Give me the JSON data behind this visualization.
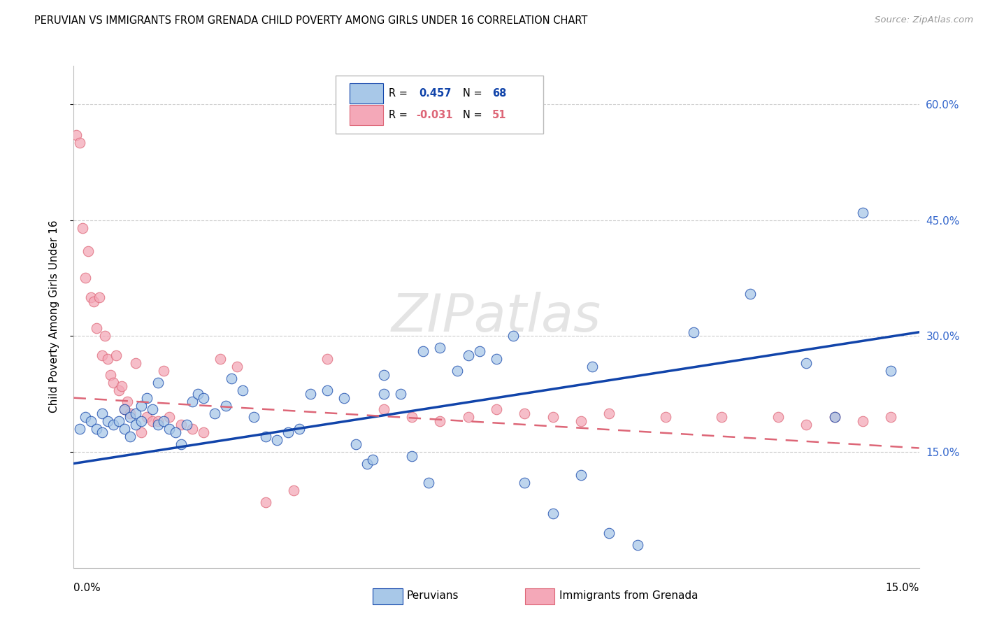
{
  "title": "PERUVIAN VS IMMIGRANTS FROM GRENADA CHILD POVERTY AMONG GIRLS UNDER 16 CORRELATION CHART",
  "source": "Source: ZipAtlas.com",
  "ylabel": "Child Poverty Among Girls Under 16",
  "xlim": [
    0.0,
    15.0
  ],
  "ylim": [
    0.0,
    65.0
  ],
  "yticks": [
    15.0,
    30.0,
    45.0,
    60.0
  ],
  "ytick_labels": [
    "15.0%",
    "30.0%",
    "45.0%",
    "60.0%"
  ],
  "legend1_label": "Peruvians",
  "legend2_label": "Immigrants from Grenada",
  "r1": 0.457,
  "n1": 68,
  "r2": -0.031,
  "n2": 51,
  "blue_color": "#A8C8E8",
  "pink_color": "#F4A8B8",
  "blue_line_color": "#1144AA",
  "pink_line_color": "#DD6677",
  "watermark": "ZIPatlas",
  "blue_x": [
    0.1,
    0.2,
    0.3,
    0.4,
    0.5,
    0.5,
    0.6,
    0.7,
    0.8,
    0.9,
    0.9,
    1.0,
    1.0,
    1.1,
    1.1,
    1.2,
    1.2,
    1.3,
    1.4,
    1.5,
    1.5,
    1.6,
    1.7,
    1.8,
    1.9,
    2.0,
    2.1,
    2.2,
    2.3,
    2.5,
    2.7,
    2.8,
    3.0,
    3.2,
    3.4,
    3.6,
    3.8,
    4.0,
    4.2,
    4.5,
    4.8,
    5.0,
    5.2,
    5.5,
    5.5,
    5.8,
    6.0,
    6.2,
    6.5,
    6.8,
    7.0,
    7.2,
    7.5,
    8.0,
    8.5,
    9.0,
    9.5,
    10.0,
    11.0,
    12.0,
    13.0,
    13.5,
    14.0,
    14.5,
    5.3,
    6.3,
    7.8,
    9.2
  ],
  "blue_y": [
    18.0,
    19.5,
    19.0,
    18.0,
    17.5,
    20.0,
    19.0,
    18.5,
    19.0,
    20.5,
    18.0,
    19.5,
    17.0,
    18.5,
    20.0,
    19.0,
    21.0,
    22.0,
    20.5,
    18.5,
    24.0,
    19.0,
    18.0,
    17.5,
    16.0,
    18.5,
    21.5,
    22.5,
    22.0,
    20.0,
    21.0,
    24.5,
    23.0,
    19.5,
    17.0,
    16.5,
    17.5,
    18.0,
    22.5,
    23.0,
    22.0,
    16.0,
    13.5,
    25.0,
    22.5,
    22.5,
    14.5,
    28.0,
    28.5,
    25.5,
    27.5,
    28.0,
    27.0,
    11.0,
    7.0,
    12.0,
    4.5,
    3.0,
    30.5,
    35.5,
    26.5,
    19.5,
    46.0,
    25.5,
    14.0,
    11.0,
    30.0,
    26.0
  ],
  "pink_x": [
    0.05,
    0.1,
    0.15,
    0.2,
    0.25,
    0.3,
    0.35,
    0.4,
    0.45,
    0.5,
    0.55,
    0.6,
    0.65,
    0.7,
    0.75,
    0.8,
    0.85,
    0.9,
    0.95,
    1.0,
    1.1,
    1.2,
    1.3,
    1.4,
    1.5,
    1.6,
    1.7,
    1.9,
    2.1,
    2.3,
    2.6,
    2.9,
    3.4,
    3.9,
    4.5,
    5.5,
    6.0,
    6.5,
    7.0,
    7.5,
    8.0,
    8.5,
    9.0,
    9.5,
    10.5,
    11.5,
    12.5,
    13.0,
    13.5,
    14.0,
    14.5
  ],
  "pink_y": [
    56.0,
    55.0,
    44.0,
    37.5,
    41.0,
    35.0,
    34.5,
    31.0,
    35.0,
    27.5,
    30.0,
    27.0,
    25.0,
    24.0,
    27.5,
    23.0,
    23.5,
    20.5,
    21.5,
    20.0,
    26.5,
    17.5,
    19.5,
    19.0,
    19.0,
    25.5,
    19.5,
    18.5,
    18.0,
    17.5,
    27.0,
    26.0,
    8.5,
    10.0,
    27.0,
    20.5,
    19.5,
    19.0,
    19.5,
    20.5,
    20.0,
    19.5,
    19.0,
    20.0,
    19.5,
    19.5,
    19.5,
    18.5,
    19.5,
    19.0,
    19.5
  ],
  "blue_line_y0": 13.5,
  "blue_line_y1": 30.5,
  "pink_line_y0": 22.0,
  "pink_line_y1": 15.5
}
